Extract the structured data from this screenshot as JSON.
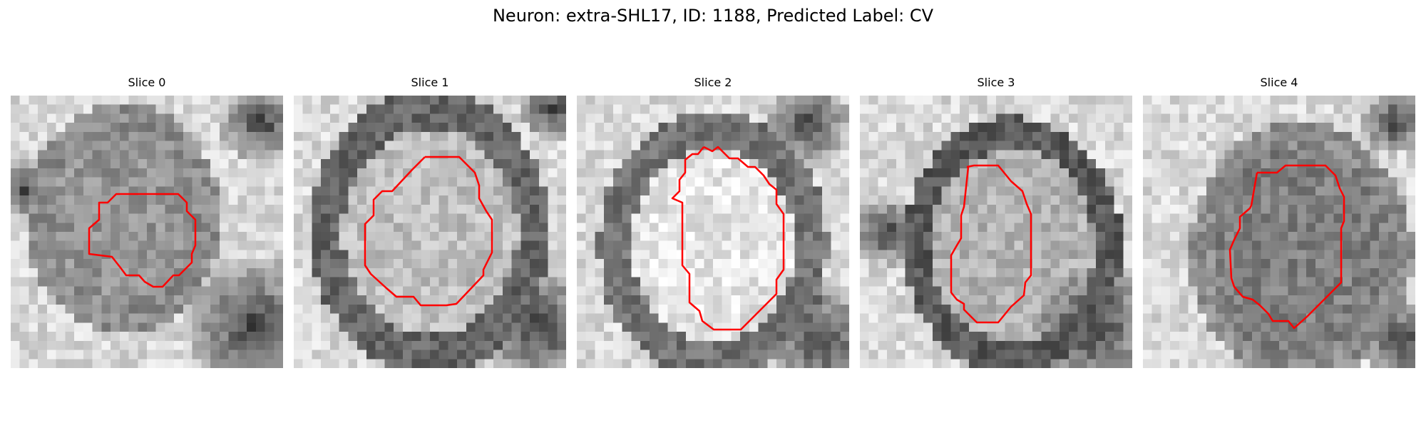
{
  "figure": {
    "title": "Neuron: extra-SHL17, ID: 1188, Predicted Label: CV",
    "contour_color": "#ff0000",
    "slices": [
      {
        "label": "Slice 0"
      },
      {
        "label": "Slice 1"
      },
      {
        "label": "Slice 2"
      },
      {
        "label": "Slice 3"
      },
      {
        "label": "Slice 4"
      }
    ]
  }
}
